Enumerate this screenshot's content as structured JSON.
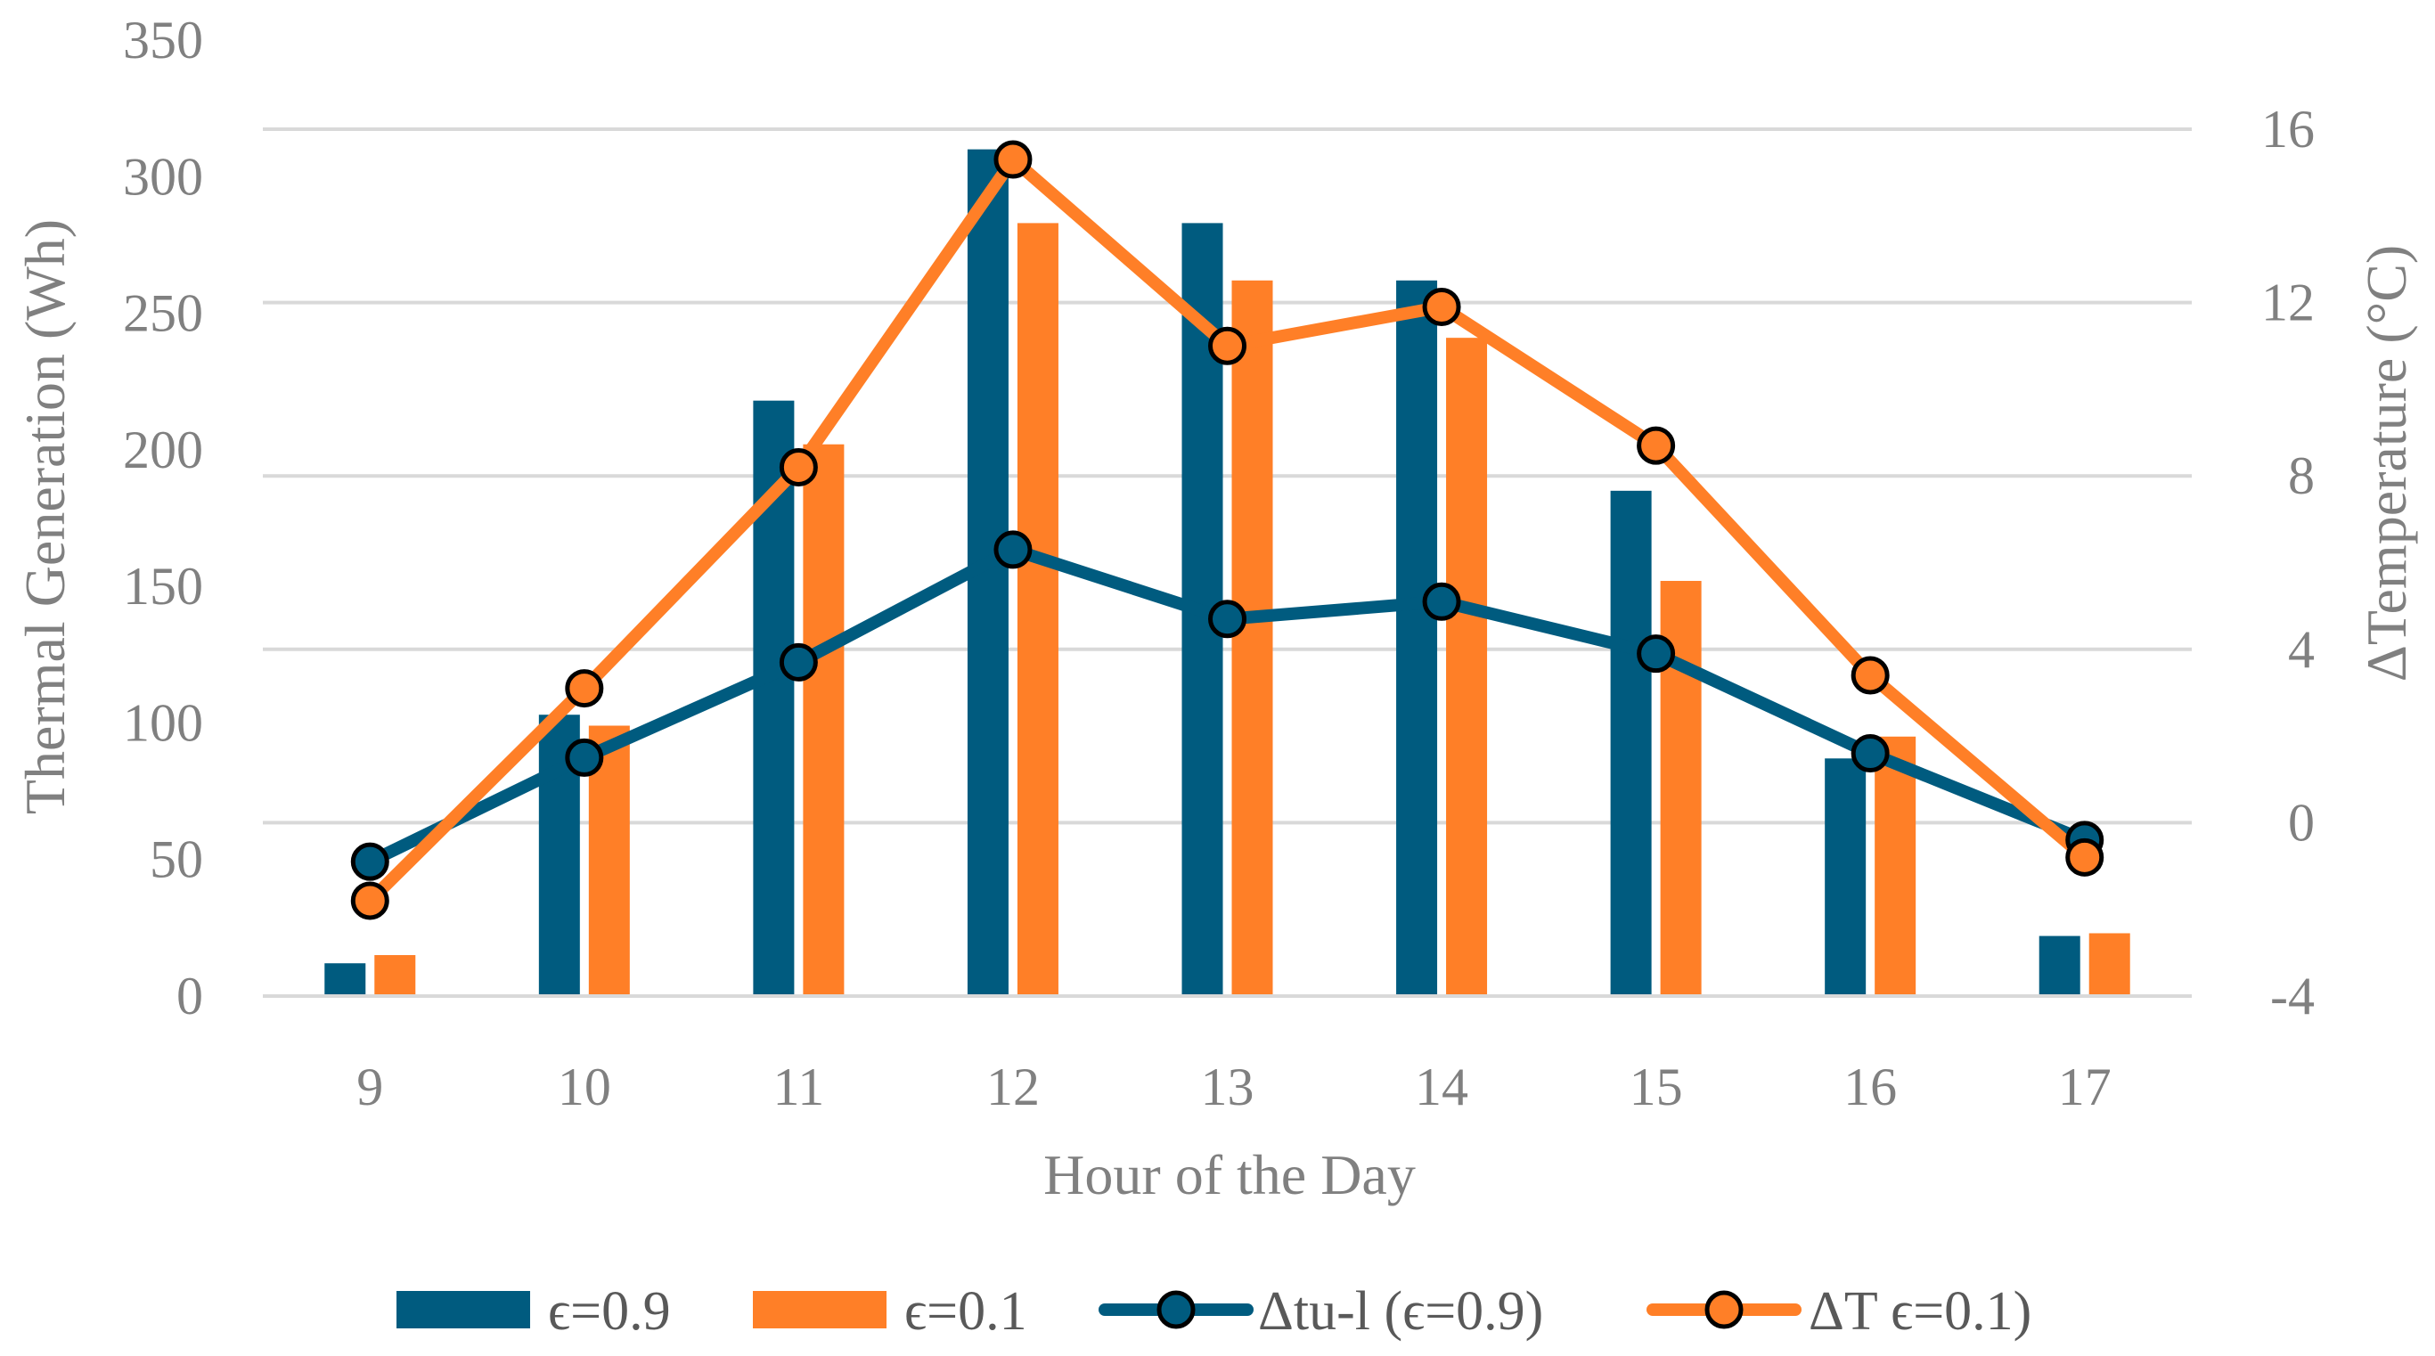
{
  "chart_data": {
    "type": "bar+line",
    "categories": [
      "9",
      "10",
      "11",
      "12",
      "13",
      "14",
      "15",
      "16",
      "17"
    ],
    "xlabel": "Hour of the Day",
    "ylabel": "Thermal Generation (Wh)",
    "y2label": "ΔTemperature (°C)",
    "ylim": [
      0,
      350
    ],
    "yticks": [
      "0",
      "50",
      "100",
      "150",
      "200",
      "250",
      "300",
      "350"
    ],
    "y2lim": [
      -4,
      16
    ],
    "y2ticks": [
      "-4",
      "0",
      "4",
      "8",
      "12",
      "16"
    ],
    "grid": true,
    "legend_position": "bottom",
    "bar_series": [
      {
        "name": "ϵ=0.9",
        "color": "#005b7f",
        "values": [
          12,
          103,
          218,
          310,
          283,
          262,
          185,
          87,
          22
        ]
      },
      {
        "name": "ϵ=0.1",
        "color": "#ff7f27",
        "values": [
          15,
          99,
          202,
          283,
          262,
          241,
          152,
          95,
          23
        ]
      }
    ],
    "line_series": [
      {
        "name": "Δtu-l (ϵ=0.9)",
        "color": "#005b7f",
        "values": [
          -0.9,
          1.5,
          3.7,
          6.3,
          4.7,
          5.1,
          3.9,
          1.6,
          -0.4
        ]
      },
      {
        "name": "ΔT ϵ=0.1)",
        "color": "#ff7f27",
        "values": [
          -1.8,
          3.1,
          8.2,
          15.3,
          11.0,
          11.9,
          8.7,
          3.4,
          -0.8
        ]
      }
    ]
  }
}
